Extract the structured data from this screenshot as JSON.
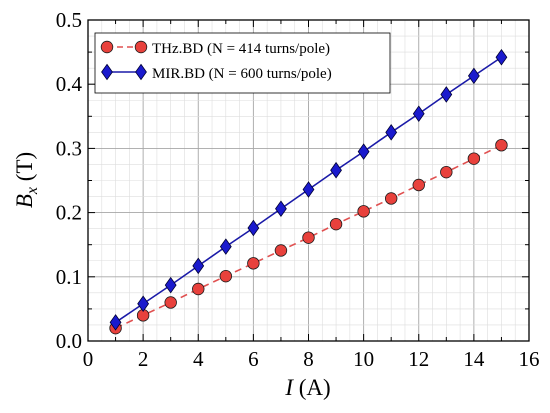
{
  "chart_data": {
    "type": "line",
    "xlabel_var": "I",
    "xlabel_unit": "(A)",
    "ylabel_var": "B",
    "ylabel_sub": "x",
    "ylabel_unit": "(T)",
    "xlim": [
      0,
      16
    ],
    "ylim": [
      0.0,
      0.5
    ],
    "xticks": [
      0,
      2,
      4,
      6,
      8,
      10,
      12,
      14,
      16
    ],
    "xtick_labels": [
      "0",
      "2",
      "4",
      "6",
      "8",
      "10",
      "12",
      "14",
      "16"
    ],
    "yticks": [
      0.0,
      0.1,
      0.2,
      0.3,
      0.4,
      0.5
    ],
    "ytick_labels": [
      "0.0",
      "0.1",
      "0.2",
      "0.3",
      "0.4",
      "0.5"
    ],
    "grid": true,
    "legend_position": "top-left",
    "series": [
      {
        "name": "THz.BD (N = 414 turns/pole)",
        "color": "#e8413c",
        "line_color": "#e05050",
        "line_style": "dashed",
        "marker": "circle",
        "x": [
          1,
          2,
          3,
          4,
          5,
          6,
          7,
          8,
          9,
          10,
          11,
          12,
          13,
          14,
          15
        ],
        "y": [
          0.02,
          0.04,
          0.06,
          0.081,
          0.101,
          0.121,
          0.141,
          0.161,
          0.182,
          0.202,
          0.222,
          0.243,
          0.263,
          0.284,
          0.305
        ]
      },
      {
        "name": "MIR.BD (N = 600 turns/pole)",
        "color": "#1a1acd",
        "line_color": "#1a1aa8",
        "line_style": "solid",
        "marker": "diamond",
        "x": [
          1,
          2,
          3,
          4,
          5,
          6,
          7,
          8,
          9,
          10,
          11,
          12,
          13,
          14,
          15
        ],
        "y": [
          0.029,
          0.058,
          0.087,
          0.117,
          0.147,
          0.176,
          0.206,
          0.236,
          0.266,
          0.295,
          0.325,
          0.354,
          0.384,
          0.413,
          0.442
        ]
      }
    ]
  }
}
